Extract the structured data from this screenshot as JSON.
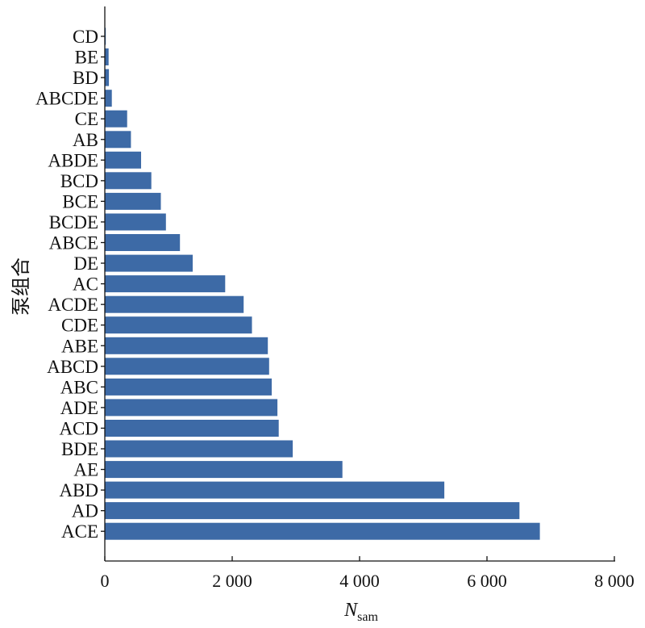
{
  "chart_data": {
    "type": "bar",
    "orientation": "horizontal",
    "categories": [
      "CD",
      "BE",
      "BD",
      "ABCDE",
      "CE",
      "AB",
      "ABDE",
      "BCD",
      "BCE",
      "BCDE",
      "ABCE",
      "DE",
      "AC",
      "ACDE",
      "CDE",
      "ABE",
      "ABCD",
      "ABC",
      "ADE",
      "ACD",
      "BDE",
      "AE",
      "ABD",
      "AD",
      "ACE"
    ],
    "values": [
      15,
      60,
      65,
      110,
      350,
      410,
      570,
      730,
      880,
      960,
      1180,
      1380,
      1890,
      2180,
      2310,
      2560,
      2580,
      2620,
      2710,
      2730,
      2950,
      3730,
      5330,
      6510,
      6830
    ],
    "xlim": [
      0,
      8000
    ],
    "xticks": [
      0,
      2000,
      4000,
      6000,
      8000
    ],
    "xtick_labels": [
      "0",
      "2 000",
      "4 000",
      "6 000",
      "8 000"
    ],
    "xlabel_main": "N",
    "xlabel_sub": "sam",
    "ylabel": "泵组合",
    "grid": false,
    "bar_color": "#3d6aa6"
  }
}
